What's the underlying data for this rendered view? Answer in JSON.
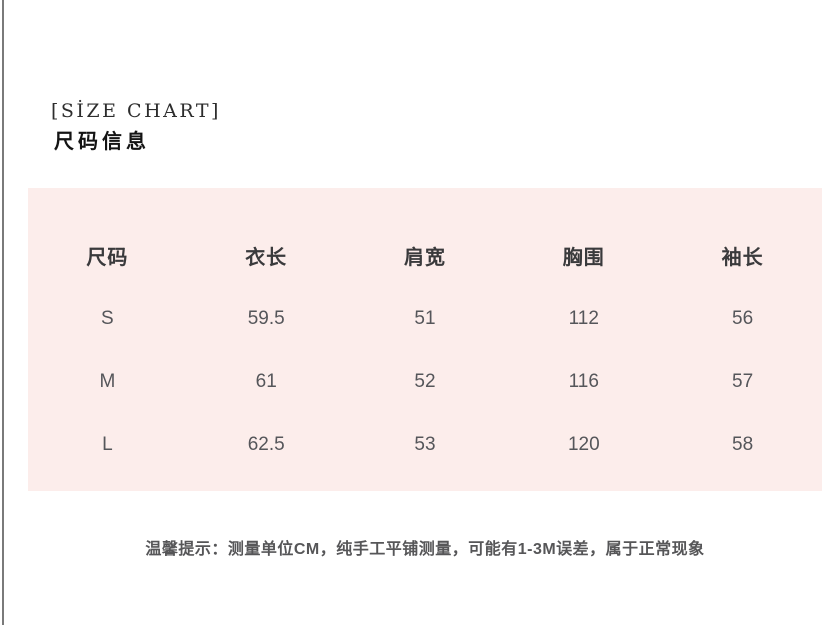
{
  "header": {
    "title_en": "[SİZE CHART]",
    "title_cn": "尺码信息"
  },
  "note": "温馨提示：测量单位CM，纯手工平铺测量，可能有1-3M误差，属于正常现象",
  "colors": {
    "panel_bg": "#fcedeb",
    "header_text": "#3a3a3c",
    "value_text": "#55565a",
    "note_text": "#565658",
    "left_rule": "#7a7a7a",
    "page_bg": "#ffffff"
  },
  "chart_data": {
    "type": "table",
    "title": "[SİZE CHART]",
    "subtitle": "尺码信息",
    "columns": [
      "尺码",
      "衣长",
      "肩宽",
      "胸围",
      "袖长"
    ],
    "rows": [
      [
        "S",
        "59.5",
        "51",
        "112",
        "56"
      ],
      [
        "M",
        "61",
        "52",
        "116",
        "57"
      ],
      [
        "L",
        "62.5",
        "53",
        "120",
        "58"
      ]
    ],
    "note": "温馨提示：测量单位CM，纯手工平铺测量，可能有1-3M误差，属于正常现象",
    "layout": {
      "grid": false,
      "header_row": true,
      "columns_equal_width": true
    }
  }
}
